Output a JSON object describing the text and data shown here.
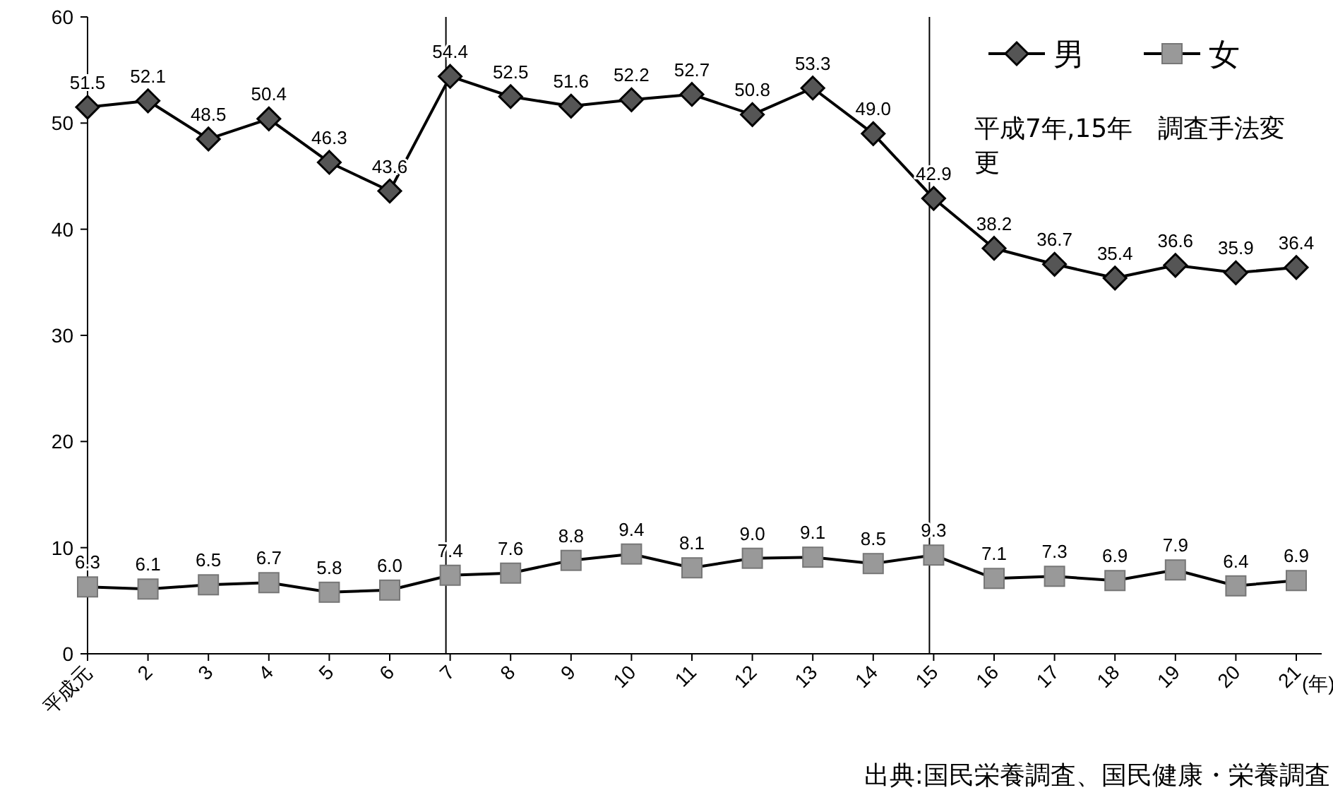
{
  "chart_data": {
    "type": "line",
    "xlabel": "(年)",
    "categories": [
      "平成元",
      "2",
      "3",
      "4",
      "5",
      "6",
      "7",
      "8",
      "9",
      "10",
      "11",
      "12",
      "13",
      "14",
      "15",
      "16",
      "17",
      "18",
      "19",
      "20",
      "21"
    ],
    "series": [
      {
        "name": "男",
        "color": "#000000",
        "marker": "diamond",
        "values": [
          51.5,
          52.1,
          48.5,
          50.4,
          46.3,
          43.6,
          54.4,
          52.5,
          51.6,
          52.2,
          52.7,
          50.8,
          53.3,
          49.0,
          42.9,
          38.2,
          36.7,
          35.4,
          36.6,
          35.9,
          36.4
        ],
        "value_labels": [
          "51.5",
          "52.1",
          "48.5",
          "50.4",
          "46.3",
          "43.6",
          "54.4",
          "52.5",
          "51.6",
          "52.2",
          "52.7",
          "50.8",
          "53.3",
          "49.0",
          "42.9",
          "38.2",
          "36.7",
          "35.4",
          "36.6",
          "35.9",
          "36.4"
        ]
      },
      {
        "name": "女",
        "color": "#999999",
        "marker": "square",
        "values": [
          6.3,
          6.1,
          6.5,
          6.7,
          5.8,
          6.0,
          7.4,
          7.6,
          8.8,
          9.4,
          8.1,
          9.0,
          9.1,
          8.5,
          9.3,
          7.1,
          7.3,
          6.9,
          7.9,
          6.4,
          6.9
        ],
        "value_labels": [
          "6.3",
          "6.1",
          "6.5",
          "6.7",
          "5.8",
          "6.0",
          "7.4",
          "7.6",
          "8.8",
          "9.4",
          "8.1",
          "9.0",
          "9.1",
          "8.5",
          "9.3",
          "7.1",
          "7.3",
          "6.9",
          "7.9",
          "6.4",
          "6.9"
        ]
      }
    ],
    "ylim": [
      0,
      60
    ],
    "yticks": [
      0,
      10,
      20,
      30,
      40,
      50,
      60
    ],
    "legend": "top right",
    "grid": false,
    "ref_lines": [
      {
        "axis": "x",
        "value": "7"
      },
      {
        "axis": "x",
        "value": "15"
      }
    ],
    "annotations": [
      "平成7年,15年　調査手法変更",
      "出典:国民栄養調査、国民健康・栄養調査"
    ]
  }
}
